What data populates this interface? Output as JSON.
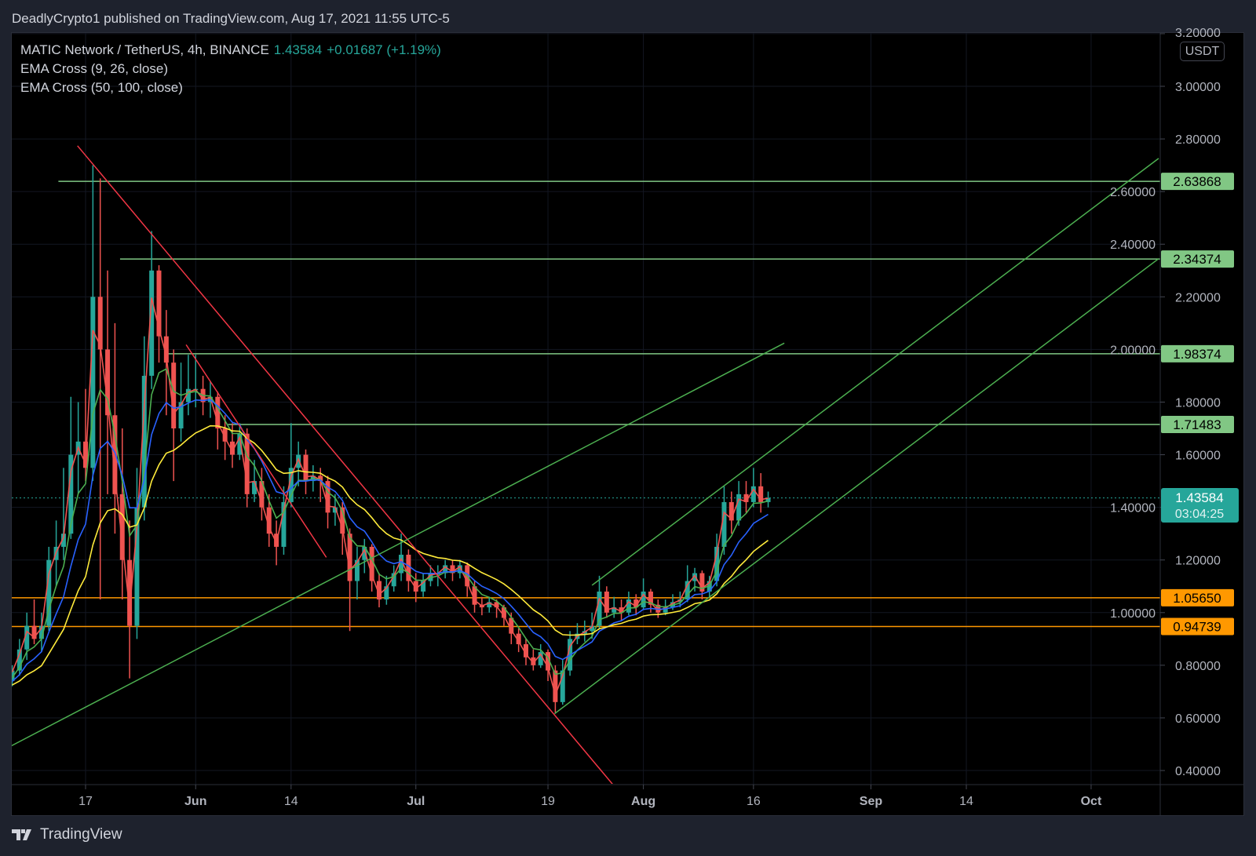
{
  "header": {
    "published": "DeadlyCrypto1 published on TradingView.com, Aug 17, 2021 11:55 UTC-5"
  },
  "legend": {
    "symbol": "MATIC Network / TetherUS, 4h, BINANCE",
    "last": "1.43584",
    "change": "+0.01687 (+1.19%)",
    "ind1": "EMA Cross (9, 26, close)",
    "ind2": "EMA Cross (50, 100, close)"
  },
  "axis": {
    "currency": "USDT",
    "countdown": "03:04:25"
  },
  "footer": {
    "brand": "TradingView"
  },
  "colors": {
    "up": "#26a69a",
    "down": "#ef5350",
    "ema9": "#ef5350",
    "ema26": "#4caf50",
    "ema50": "#2962ff",
    "ema100": "#ffeb3b",
    "level_green": "#81c784",
    "level_orange": "#ff9800",
    "trend_red": "#f23645",
    "trend_green": "#4caf50"
  },
  "chart_data": {
    "type": "candlestick",
    "title": "MATIC Network / TetherUS, 4h, BINANCE",
    "x_unit": "days since May 17 2021",
    "ylim": [
      0.33,
      3.22
    ],
    "xlim": [
      -10.5,
      157.5
    ],
    "y_ticks": [
      "3.20000",
      "3.00000",
      "2.80000",
      "2.60000",
      "2.40000",
      "2.20000",
      "2.00000",
      "1.80000",
      "1.60000",
      "1.40000",
      "1.20000",
      "1.00000",
      "0.80000",
      "0.60000",
      "0.40000"
    ],
    "x_ticks": [
      {
        "label": "17",
        "day": 0
      },
      {
        "label": "Jun",
        "day": 15
      },
      {
        "label": "14",
        "day": 28
      },
      {
        "label": "Jul",
        "day": 45
      },
      {
        "label": "19",
        "day": 63
      },
      {
        "label": "Aug",
        "day": 76
      },
      {
        "label": "16",
        "day": 91
      },
      {
        "label": "Sep",
        "day": 107
      },
      {
        "label": "14",
        "day": 120
      },
      {
        "label": "Oct",
        "day": 137
      }
    ],
    "first_day": -10,
    "ohlc": [
      [
        0.74,
        0.8,
        0.72,
        0.78
      ],
      [
        0.78,
        0.9,
        0.76,
        0.86
      ],
      [
        0.86,
        1.0,
        0.82,
        0.95
      ],
      [
        0.95,
        1.05,
        0.88,
        0.9
      ],
      [
        0.9,
        1.0,
        0.85,
        0.95
      ],
      [
        0.95,
        1.25,
        0.93,
        1.2
      ],
      [
        1.2,
        1.35,
        1.1,
        1.25
      ],
      [
        1.25,
        1.55,
        1.2,
        1.3
      ],
      [
        1.3,
        1.82,
        1.28,
        1.6
      ],
      [
        1.6,
        1.8,
        1.45,
        1.65
      ],
      [
        1.65,
        1.85,
        1.5,
        1.55
      ],
      [
        1.55,
        2.7,
        1.5,
        2.2
      ],
      [
        2.2,
        2.65,
        1.05,
        2.0
      ],
      [
        2.0,
        2.3,
        1.45,
        1.75
      ],
      [
        1.75,
        2.1,
        1.3,
        1.45
      ],
      [
        1.45,
        1.7,
        1.05,
        1.2
      ],
      [
        1.2,
        1.35,
        0.75,
        0.95
      ],
      [
        0.95,
        1.55,
        0.9,
        1.4
      ],
      [
        1.4,
        2.05,
        1.35,
        1.9
      ],
      [
        1.9,
        2.45,
        1.85,
        2.3
      ],
      [
        2.3,
        2.32,
        1.95,
        2.05
      ],
      [
        2.05,
        2.15,
        1.75,
        1.95
      ],
      [
        1.95,
        2.0,
        1.5,
        1.7
      ],
      [
        1.7,
        1.95,
        1.65,
        1.8
      ],
      [
        1.8,
        1.98,
        1.75,
        1.85
      ],
      [
        1.85,
        1.98,
        1.78,
        1.85
      ],
      [
        1.85,
        1.9,
        1.75,
        1.8
      ],
      [
        1.8,
        1.88,
        1.74,
        1.82
      ],
      [
        1.82,
        1.84,
        1.62,
        1.7
      ],
      [
        1.7,
        1.75,
        1.58,
        1.65
      ],
      [
        1.65,
        1.72,
        1.55,
        1.6
      ],
      [
        1.6,
        1.72,
        1.58,
        1.68
      ],
      [
        1.68,
        1.7,
        1.4,
        1.45
      ],
      [
        1.45,
        1.58,
        1.42,
        1.5
      ],
      [
        1.5,
        1.55,
        1.35,
        1.4
      ],
      [
        1.4,
        1.45,
        1.25,
        1.3
      ],
      [
        1.3,
        1.35,
        1.18,
        1.25
      ],
      [
        1.25,
        1.48,
        1.22,
        1.42
      ],
      [
        1.42,
        1.72,
        1.4,
        1.55
      ],
      [
        1.55,
        1.65,
        1.48,
        1.6
      ],
      [
        1.6,
        1.62,
        1.45,
        1.5
      ],
      [
        1.5,
        1.56,
        1.46,
        1.52
      ],
      [
        1.52,
        1.55,
        1.42,
        1.5
      ],
      [
        1.5,
        1.52,
        1.32,
        1.38
      ],
      [
        1.38,
        1.45,
        1.33,
        1.4
      ],
      [
        1.4,
        1.42,
        1.22,
        1.3
      ],
      [
        1.3,
        1.32,
        0.93,
        1.12
      ],
      [
        1.12,
        1.25,
        1.05,
        1.2
      ],
      [
        1.2,
        1.28,
        1.15,
        1.25
      ],
      [
        1.25,
        1.26,
        1.08,
        1.12
      ],
      [
        1.12,
        1.15,
        1.02,
        1.05
      ],
      [
        1.05,
        1.14,
        1.03,
        1.1
      ],
      [
        1.1,
        1.18,
        1.08,
        1.15
      ],
      [
        1.15,
        1.3,
        1.12,
        1.22
      ],
      [
        1.22,
        1.24,
        1.08,
        1.12
      ],
      [
        1.12,
        1.15,
        1.04,
        1.08
      ],
      [
        1.08,
        1.15,
        1.06,
        1.12
      ],
      [
        1.12,
        1.18,
        1.1,
        1.15
      ],
      [
        1.15,
        1.18,
        1.1,
        1.15
      ],
      [
        1.15,
        1.2,
        1.13,
        1.18
      ],
      [
        1.18,
        1.2,
        1.12,
        1.15
      ],
      [
        1.15,
        1.2,
        1.13,
        1.18
      ],
      [
        1.18,
        1.19,
        1.06,
        1.1
      ],
      [
        1.1,
        1.12,
        1.0,
        1.03
      ],
      [
        1.03,
        1.06,
        0.99,
        1.02
      ],
      [
        1.02,
        1.06,
        1.0,
        1.04
      ],
      [
        1.04,
        1.05,
        0.98,
        1.02
      ],
      [
        1.02,
        1.03,
        0.95,
        0.98
      ],
      [
        0.98,
        1.0,
        0.88,
        0.92
      ],
      [
        0.92,
        0.94,
        0.85,
        0.88
      ],
      [
        0.88,
        0.9,
        0.8,
        0.83
      ],
      [
        0.83,
        0.86,
        0.78,
        0.8
      ],
      [
        0.8,
        0.88,
        0.79,
        0.85
      ],
      [
        0.85,
        0.86,
        0.74,
        0.78
      ],
      [
        0.78,
        0.8,
        0.62,
        0.66
      ],
      [
        0.66,
        0.82,
        0.65,
        0.78
      ],
      [
        0.78,
        0.93,
        0.76,
        0.9
      ],
      [
        0.9,
        0.96,
        0.88,
        0.92
      ],
      [
        0.92,
        0.97,
        0.89,
        0.93
      ],
      [
        0.93,
        1.0,
        0.9,
        0.95
      ],
      [
        0.95,
        1.14,
        0.94,
        1.08
      ],
      [
        1.08,
        1.1,
        0.98,
        1.0
      ],
      [
        1.0,
        1.06,
        0.98,
        1.02
      ],
      [
        1.02,
        1.05,
        0.97,
        1.0
      ],
      [
        1.0,
        1.08,
        0.99,
        1.05
      ],
      [
        1.05,
        1.07,
        0.99,
        1.02
      ],
      [
        1.02,
        1.13,
        1.01,
        1.08
      ],
      [
        1.08,
        1.09,
        1.0,
        1.03
      ],
      [
        1.03,
        1.05,
        0.98,
        1.0
      ],
      [
        1.0,
        1.05,
        0.99,
        1.02
      ],
      [
        1.02,
        1.07,
        1.01,
        1.04
      ],
      [
        1.04,
        1.08,
        1.02,
        1.05
      ],
      [
        1.05,
        1.18,
        1.04,
        1.12
      ],
      [
        1.12,
        1.17,
        1.08,
        1.15
      ],
      [
        1.15,
        1.16,
        1.05,
        1.08
      ],
      [
        1.08,
        1.14,
        1.06,
        1.12
      ],
      [
        1.12,
        1.3,
        1.1,
        1.25
      ],
      [
        1.25,
        1.48,
        1.22,
        1.42
      ],
      [
        1.42,
        1.46,
        1.3,
        1.35
      ],
      [
        1.35,
        1.5,
        1.33,
        1.45
      ],
      [
        1.45,
        1.5,
        1.38,
        1.42
      ],
      [
        1.42,
        1.55,
        1.4,
        1.48
      ],
      [
        1.48,
        1.53,
        1.38,
        1.42
      ],
      [
        1.42,
        1.46,
        1.4,
        1.43584
      ]
    ],
    "emas": [
      {
        "name": "EMA 9",
        "period": 9,
        "color_key": "ema9"
      },
      {
        "name": "EMA 26",
        "period": 26,
        "color_key": "ema26"
      },
      {
        "name": "EMA 50",
        "period": 50,
        "color_key": "ema50"
      },
      {
        "name": "EMA 100",
        "period": 100,
        "color_key": "ema100"
      }
    ],
    "bars_per_day": 6,
    "levels": [
      {
        "price": 2.63868,
        "label": "2.63868",
        "from_day": -3.7,
        "color_key": "level_green"
      },
      {
        "price": 2.34374,
        "label": "2.34374",
        "from_day": 4.7,
        "color_key": "level_green"
      },
      {
        "price": 1.98374,
        "label": "1.98374",
        "from_day": 10.8,
        "color_key": "level_green"
      },
      {
        "price": 1.71483,
        "label": "1.71483",
        "from_day": 19.4,
        "color_key": "level_green"
      },
      {
        "price": 1.0565,
        "label": "1.05650",
        "from_day": -10.5,
        "color_key": "level_orange"
      },
      {
        "price": 0.94739,
        "label": "0.94739",
        "from_day": -10.5,
        "color_key": "level_orange"
      }
    ],
    "last_price": {
      "price": 1.43584,
      "label": "1.43584"
    },
    "trendlines": [
      {
        "from": [
          -1.1,
          2.774
        ],
        "to": [
          71.8,
          0.348
        ],
        "color_key": "trend_red"
      },
      {
        "from": [
          13.7,
          2.018
        ],
        "to": [
          32.8,
          1.21
        ],
        "color_key": "trend_red"
      },
      {
        "from": [
          -10.1,
          0.494
        ],
        "to": [
          95.2,
          2.024
        ],
        "color_key": "trend_green"
      },
      {
        "from": [
          63.9,
          0.616
        ],
        "to": [
          146.2,
          2.345
        ],
        "color_key": "trend_green"
      },
      {
        "from": [
          69.0,
          1.104
        ],
        "to": [
          146.2,
          2.726
        ],
        "color_key": "trend_green"
      }
    ]
  }
}
